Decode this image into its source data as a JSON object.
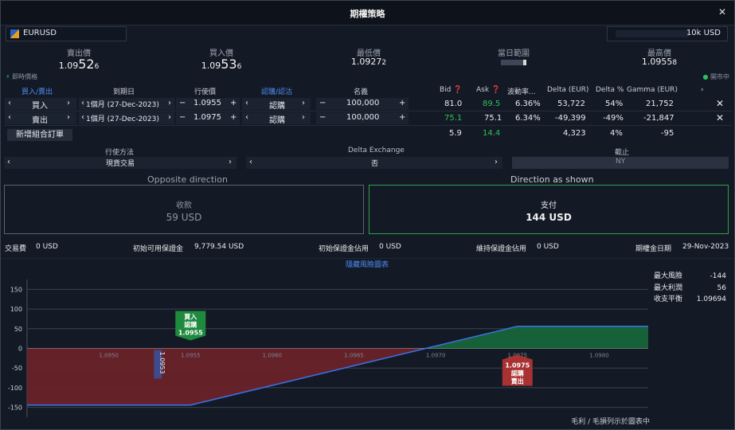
{
  "window": {
    "title": "期權策略",
    "close_icon": "✕"
  },
  "symbol": {
    "name": "EURUSD",
    "icon": "eur-usd-flag-icon"
  },
  "quantity": {
    "value": "10k USD"
  },
  "prices": {
    "sell_label": "賣出價",
    "sell_prefix": "1.09",
    "sell_big": "52",
    "sell_frac": "6",
    "buy_label": "買入價",
    "buy_prefix": "1.09",
    "buy_big": "53",
    "buy_frac": "6",
    "low_label": "最低價",
    "low_main": "1.0927",
    "low_frac": "2",
    "range_label": "當日範圍",
    "high_label": "最高價",
    "high_main": "1.0955",
    "high_frac": "8"
  },
  "status": {
    "realtime": "即時價格",
    "market": "開市中"
  },
  "table": {
    "headers": [
      "買入/賣出",
      "到期日",
      "行使價",
      "認購/認沽",
      "名義",
      "Bid",
      "Ask",
      "波動率...",
      "Delta (EUR)",
      "Delta %",
      "Gamma (EUR)"
    ],
    "rows": [
      {
        "side": "買入",
        "expiry": "1個月 (27-Dec-2023)",
        "strike": "1.0955",
        "type": "認購",
        "notional": "100,000",
        "bid": "81.0",
        "ask": "89.5",
        "vol": "6.36%",
        "delta": "53,722",
        "delta_pct": "54%",
        "gamma": "21,752"
      },
      {
        "side": "賣出",
        "expiry": "1個月 (27-Dec-2023)",
        "strike": "1.0975",
        "type": "認購",
        "notional": "100,000",
        "bid": "75.1",
        "ask": "75.1",
        "vol": "6.34%",
        "delta": "-49,399",
        "delta_pct": "-49%",
        "gamma": "-21,847"
      }
    ],
    "totals": {
      "bid": "5.9",
      "ask": "14.4",
      "delta": "4,323",
      "delta_pct": "4%",
      "gamma": "-95"
    },
    "add_button": "新增組合訂單"
  },
  "settings": {
    "exercise_label": "行使方法",
    "exercise_value": "現貨交易",
    "delta_label": "Delta Exchange",
    "delta_value": "否",
    "cutoff_label": "截止",
    "cutoff_value": "NY"
  },
  "direction": {
    "opposite_title": "Opposite direction",
    "opposite_label": "收款",
    "opposite_value": "59 USD",
    "shown_title": "Direction as shown",
    "shown_label": "支付",
    "shown_value": "144 USD"
  },
  "summary": {
    "fee_label": "交易費",
    "fee_value": "0 USD",
    "avail_label": "初始可用保證金",
    "avail_value": "9,779.54 USD",
    "init_label": "初始保證金佔用",
    "init_value": "0 USD",
    "maint_label": "維持保證金佔用",
    "maint_value": "0 USD",
    "expiry_label": "期權金日期",
    "expiry_value": "29-Nov-2023"
  },
  "chart_link": "隱藏風險圖表",
  "risk": {
    "max_risk_label": "最大風險",
    "max_risk": "-144",
    "max_profit_label": "最大利潤",
    "max_profit": "56",
    "breakeven_label": "收支平衡",
    "breakeven": "1.09694"
  },
  "chart_footer": "毛利 / 毛損列示於圖表中",
  "chart_data": {
    "type": "line",
    "x": [
      1.0945,
      1.0955,
      1.0975,
      1.0983
    ],
    "y": [
      -144,
      -144,
      56,
      56
    ],
    "xlim": [
      1.0945,
      1.0983
    ],
    "ylim": [
      -175,
      175
    ],
    "yticks": [
      150,
      100,
      50,
      0,
      -50,
      -100,
      -150
    ],
    "xticks": [
      "1.0950",
      "1.0955",
      "1.0960",
      "1.0965",
      "1.0970",
      "1.0975",
      "1.0980"
    ],
    "markers": [
      {
        "label_lines": [
          "買入",
          "認購",
          "1.0955"
        ],
        "x": 1.0955,
        "color": "#1e8a3e"
      },
      {
        "label_lines": [
          "1.0975",
          "認購",
          "賣出"
        ],
        "x": 1.0975,
        "color": "#a83232"
      }
    ],
    "spot_label": "1.0953",
    "spot_x": 1.0953,
    "colors": {
      "line": "#3c6ee0",
      "profit": "#17653a",
      "loss": "#6e2229"
    }
  }
}
